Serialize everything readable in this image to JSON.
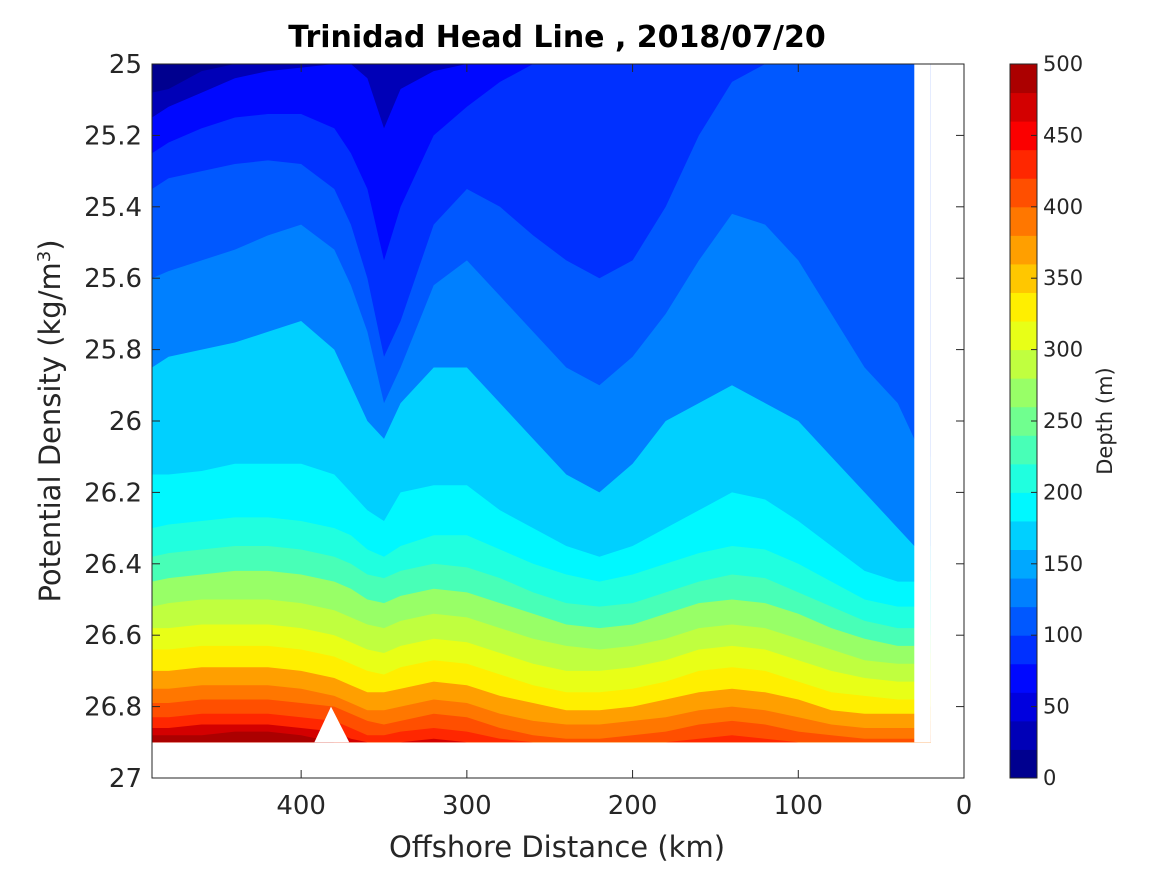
{
  "chart_data": {
    "type": "heatmap",
    "subtype": "filled-contour",
    "title": "Trinidad Head Line , 2018/07/20",
    "xlabel": "Offshore Distance (km)",
    "ylabel_main": "Potential Density (kg/m",
    "ylabel_sup": "3",
    "ylabel_close": ")",
    "colorbar_label": "Depth (m)",
    "x_axis": {
      "min": 0,
      "max": 490,
      "reversed": true,
      "ticks": [
        400,
        300,
        200,
        100,
        0
      ],
      "tick_labels": [
        "400",
        "300",
        "200",
        "100",
        "0"
      ]
    },
    "y_axis": {
      "min": 25,
      "max": 27,
      "reversed": true,
      "ticks": [
        25,
        25.2,
        25.4,
        25.6,
        25.8,
        26,
        26.2,
        26.4,
        26.6,
        26.8,
        27
      ],
      "tick_labels": [
        "25",
        "25.2",
        "25.4",
        "25.6",
        "25.8",
        "26",
        "26.2",
        "26.4",
        "26.6",
        "26.8",
        "27"
      ]
    },
    "colorbar": {
      "min": 0,
      "max": 500,
      "ticks": [
        0,
        50,
        100,
        150,
        200,
        250,
        300,
        350,
        400,
        450,
        500
      ],
      "tick_labels": [
        "0",
        "50",
        "100",
        "150",
        "200",
        "250",
        "300",
        "350",
        "400",
        "450",
        "500"
      ],
      "levels": [
        0,
        25,
        50,
        75,
        100,
        125,
        150,
        175,
        200,
        225,
        250,
        275,
        300,
        325,
        350,
        375,
        400,
        425,
        450,
        475,
        500
      ],
      "colors": [
        "#00008f",
        "#0000b7",
        "#0000df",
        "#0008ff",
        "#0030ff",
        "#0058ff",
        "#0080ff",
        "#00a8ff",
        "#00d0ff",
        "#00f8ff",
        "#20ffdf",
        "#48ffb7",
        "#70ff8f",
        "#98ff67",
        "#c0ff3f",
        "#e8ff17",
        "#ffef00",
        "#ffc700",
        "#ff9f00",
        "#ff7700",
        "#ff4f00",
        "#ff2700",
        "#fb0000",
        "#d30000",
        "#ab0000"
      ]
    },
    "x": [
      490,
      480,
      460,
      440,
      420,
      400,
      380,
      370,
      360,
      350,
      340,
      320,
      300,
      280,
      260,
      240,
      220,
      200,
      180,
      160,
      140,
      120,
      100,
      80,
      60,
      40,
      30,
      20
    ],
    "contours": [
      {
        "level": 25,
        "y": [
          25.08,
          25.07,
          25.02,
          25.0,
          25.0,
          25.0,
          25.0,
          25.0,
          25.0,
          25.0,
          25.0,
          25.0,
          25.0,
          25.0,
          25.0,
          25.0,
          25.0,
          25.0,
          25.0,
          25.0,
          25.0,
          25.0,
          25.0,
          25.0,
          25.0,
          25.0,
          25.0,
          25.0
        ]
      },
      {
        "level": 50,
        "y": [
          25.15,
          25.12,
          25.08,
          25.04,
          25.02,
          25.01,
          25.0,
          25.0,
          25.04,
          25.18,
          25.07,
          25.02,
          25.0,
          25.0,
          25.0,
          25.0,
          25.0,
          25.0,
          25.0,
          25.0,
          25.0,
          25.0,
          25.0,
          25.0,
          25.0,
          25.0,
          25.0,
          25.0
        ]
      },
      {
        "level": 75,
        "y": [
          25.25,
          25.22,
          25.18,
          25.15,
          25.14,
          25.14,
          25.18,
          25.25,
          25.35,
          25.55,
          25.4,
          25.2,
          25.12,
          25.05,
          25.0,
          25.0,
          25.0,
          25.0,
          25.0,
          25.0,
          25.0,
          25.0,
          25.0,
          25.0,
          25.0,
          25.0,
          25.0,
          25.0
        ]
      },
      {
        "level": 100,
        "y": [
          25.35,
          25.32,
          25.3,
          25.28,
          25.27,
          25.28,
          25.35,
          25.45,
          25.6,
          25.82,
          25.72,
          25.45,
          25.35,
          25.4,
          25.48,
          25.55,
          25.6,
          25.55,
          25.4,
          25.2,
          25.05,
          25.0,
          25.0,
          25.0,
          25.0,
          25.0,
          25.0,
          25.0
        ]
      },
      {
        "level": 125,
        "y": [
          25.6,
          25.58,
          25.55,
          25.52,
          25.48,
          25.45,
          25.52,
          25.62,
          25.75,
          25.95,
          25.85,
          25.62,
          25.55,
          25.65,
          25.75,
          25.85,
          25.9,
          25.82,
          25.7,
          25.55,
          25.42,
          25.45,
          25.55,
          25.7,
          25.85,
          25.95,
          26.05,
          26.1
        ]
      },
      {
        "level": 150,
        "y": [
          25.85,
          25.82,
          25.8,
          25.78,
          25.75,
          25.72,
          25.8,
          25.9,
          26.0,
          26.05,
          25.95,
          25.85,
          25.85,
          25.95,
          26.05,
          26.15,
          26.2,
          26.12,
          26.0,
          25.95,
          25.9,
          25.95,
          26.0,
          26.1,
          26.2,
          26.3,
          26.35,
          26.35
        ]
      },
      {
        "level": 175,
        "y": [
          26.15,
          26.15,
          26.14,
          26.12,
          26.12,
          26.12,
          26.15,
          26.2,
          26.25,
          26.28,
          26.2,
          26.18,
          26.18,
          26.25,
          26.3,
          26.35,
          26.38,
          26.35,
          26.3,
          26.25,
          26.2,
          26.22,
          26.28,
          26.35,
          26.42,
          26.45,
          26.45,
          26.42
        ]
      },
      {
        "level": 200,
        "y": [
          26.3,
          26.29,
          26.28,
          26.27,
          26.27,
          26.28,
          26.3,
          26.32,
          26.36,
          26.38,
          26.35,
          26.32,
          26.32,
          26.36,
          26.4,
          26.43,
          26.45,
          26.43,
          26.4,
          26.37,
          26.35,
          26.36,
          26.4,
          26.45,
          26.5,
          26.52,
          26.52,
          26.5
        ]
      },
      {
        "level": 225,
        "y": [
          26.38,
          26.37,
          26.36,
          26.35,
          26.35,
          26.36,
          26.38,
          26.4,
          26.43,
          26.44,
          26.42,
          26.4,
          26.41,
          26.44,
          26.48,
          26.51,
          26.52,
          26.51,
          26.48,
          26.45,
          26.43,
          26.44,
          26.48,
          26.52,
          26.56,
          26.58,
          26.58,
          26.56
        ]
      },
      {
        "level": 250,
        "y": [
          26.45,
          26.44,
          26.43,
          26.42,
          26.42,
          26.43,
          26.45,
          26.47,
          26.5,
          26.51,
          26.49,
          26.47,
          26.48,
          26.51,
          26.54,
          26.57,
          26.58,
          26.57,
          26.54,
          26.51,
          26.5,
          26.51,
          26.54,
          26.58,
          26.61,
          26.63,
          26.63,
          26.6
        ]
      },
      {
        "level": 275,
        "y": [
          26.52,
          26.51,
          26.5,
          26.5,
          26.5,
          26.51,
          26.53,
          26.55,
          26.57,
          26.58,
          26.56,
          26.54,
          26.55,
          26.58,
          26.61,
          26.63,
          26.64,
          26.63,
          26.61,
          26.58,
          26.57,
          26.58,
          26.61,
          26.64,
          26.67,
          26.68,
          26.68,
          26.65
        ]
      },
      {
        "level": 300,
        "y": [
          26.58,
          26.58,
          26.57,
          26.57,
          26.57,
          26.58,
          26.6,
          26.62,
          26.64,
          26.65,
          26.63,
          26.61,
          26.62,
          26.65,
          26.68,
          26.7,
          26.7,
          26.69,
          26.67,
          26.64,
          26.63,
          26.64,
          26.67,
          26.7,
          26.72,
          26.73,
          26.73,
          26.7
        ]
      },
      {
        "level": 325,
        "y": [
          26.64,
          26.64,
          26.63,
          26.63,
          26.63,
          26.64,
          26.66,
          26.68,
          26.7,
          26.71,
          26.69,
          26.67,
          26.68,
          26.71,
          26.74,
          26.76,
          26.76,
          26.75,
          26.73,
          26.7,
          26.69,
          26.7,
          26.73,
          26.76,
          26.77,
          26.78,
          26.78,
          26.75
        ]
      },
      {
        "level": 350,
        "y": [
          26.7,
          26.7,
          26.69,
          26.69,
          26.69,
          26.7,
          26.72,
          26.74,
          26.76,
          26.76,
          26.75,
          26.73,
          26.74,
          26.77,
          26.79,
          26.81,
          26.81,
          26.8,
          26.78,
          26.76,
          26.75,
          26.76,
          26.78,
          26.81,
          26.82,
          26.82,
          26.82,
          26.8
        ]
      },
      {
        "level": 375,
        "y": [
          26.75,
          26.75,
          26.74,
          26.74,
          26.74,
          26.75,
          26.77,
          26.79,
          26.81,
          26.81,
          26.8,
          26.78,
          26.79,
          26.82,
          26.84,
          26.85,
          26.85,
          26.84,
          26.83,
          26.81,
          26.8,
          26.81,
          26.83,
          26.85,
          26.86,
          26.86,
          26.86,
          26.84
        ]
      },
      {
        "level": 400,
        "y": [
          26.79,
          26.79,
          26.78,
          26.78,
          26.78,
          26.79,
          26.8,
          26.82,
          26.84,
          26.85,
          26.84,
          26.82,
          26.83,
          26.86,
          26.88,
          26.89,
          26.89,
          26.88,
          26.87,
          26.85,
          26.84,
          26.85,
          26.87,
          26.88,
          26.89,
          26.89,
          26.89,
          26.88
        ]
      },
      {
        "level": 425,
        "y": [
          26.83,
          26.83,
          26.82,
          26.82,
          26.82,
          26.83,
          26.84,
          26.86,
          26.88,
          26.88,
          26.87,
          26.86,
          26.87,
          26.89,
          26.9,
          26.9,
          26.9,
          26.9,
          26.9,
          26.89,
          26.88,
          26.89,
          26.9,
          26.9,
          26.9,
          26.9,
          26.9,
          26.9
        ]
      },
      {
        "level": 450,
        "y": [
          26.86,
          26.86,
          26.85,
          26.85,
          26.85,
          26.86,
          26.87,
          26.89,
          26.9,
          26.9,
          26.9,
          26.89,
          26.9,
          26.9,
          26.9,
          26.9,
          26.9,
          26.9,
          26.9,
          26.9,
          26.9,
          26.9,
          26.9,
          26.9,
          26.9,
          26.9,
          26.9,
          26.9
        ]
      },
      {
        "level": 475,
        "y": [
          26.88,
          26.88,
          26.88,
          26.87,
          26.87,
          26.88,
          26.9,
          26.9,
          26.9,
          26.9,
          26.9,
          26.9,
          26.9,
          26.9,
          26.9,
          26.9,
          26.9,
          26.9,
          26.9,
          26.9,
          26.9,
          26.9,
          26.9,
          26.9,
          26.9,
          26.9,
          26.9,
          26.9
        ]
      }
    ],
    "data_bottom_y": 26.9,
    "data_region_x": [
      490,
      20
    ],
    "nodata_regions": [
      {
        "description": "white gap near coast",
        "x": [
          30,
          30,
          20,
          20
        ],
        "y": [
          25.0,
          26.9,
          26.9,
          25.0
        ]
      },
      {
        "description": "white notch at bottom",
        "x": [
          392,
          382,
          371
        ],
        "y": [
          26.9,
          26.8,
          26.9
        ]
      }
    ]
  }
}
